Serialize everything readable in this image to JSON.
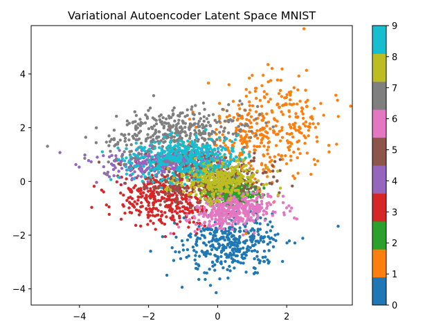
{
  "chart_data": {
    "type": "scatter",
    "title": "Variational Autoencoder Latent Space MNIST",
    "xlabel": "",
    "ylabel": "",
    "xlim": [
      -5.4,
      3.9
    ],
    "ylim": [
      -4.6,
      5.8
    ],
    "x_ticks": [
      -4,
      -2,
      0,
      2
    ],
    "y_ticks": [
      -4,
      -2,
      0,
      2,
      4
    ],
    "colorbar": {
      "ticks": [
        0,
        1,
        2,
        3,
        4,
        5,
        6,
        7,
        8,
        9
      ],
      "colormap": "tab10"
    },
    "classes": [
      {
        "label": "0",
        "color": "#1f77b4",
        "center": [
          0.3,
          -2.3
        ],
        "spread": [
          0.75,
          0.55
        ],
        "tilt": 0.35
      },
      {
        "label": "1",
        "color": "#ff7f0e",
        "center": [
          1.3,
          1.8
        ],
        "spread": [
          0.8,
          1.05
        ],
        "tilt": -0.7
      },
      {
        "label": "2",
        "color": "#2ca02c",
        "center": [
          0.3,
          -0.4
        ],
        "spread": [
          0.35,
          0.25
        ],
        "tilt": 0.0
      },
      {
        "label": "3",
        "color": "#d62728",
        "center": [
          -1.6,
          -0.7
        ],
        "spread": [
          0.7,
          0.5
        ],
        "tilt": -0.2
      },
      {
        "label": "4",
        "color": "#9467bd",
        "center": [
          -1.5,
          0.7
        ],
        "spread": [
          0.9,
          0.25
        ],
        "tilt": 0.05
      },
      {
        "label": "5",
        "color": "#8c564b",
        "center": [
          -0.3,
          0.2
        ],
        "spread": [
          0.9,
          0.45
        ],
        "tilt": 0.0
      },
      {
        "label": "6",
        "color": "#e377c2",
        "center": [
          0.5,
          -1.1
        ],
        "spread": [
          0.6,
          0.3
        ],
        "tilt": 0.2
      },
      {
        "label": "7",
        "color": "#7f7f7f",
        "center": [
          -1.2,
          1.8
        ],
        "spread": [
          1.0,
          0.45
        ],
        "tilt": 0.15
      },
      {
        "label": "8",
        "color": "#bcbd22",
        "center": [
          0.0,
          0.1
        ],
        "spread": [
          0.55,
          0.35
        ],
        "tilt": 0.0
      },
      {
        "label": "9",
        "color": "#17becf",
        "center": [
          -0.9,
          0.9
        ],
        "spread": [
          0.8,
          0.35
        ],
        "tilt": 0.1
      }
    ]
  }
}
